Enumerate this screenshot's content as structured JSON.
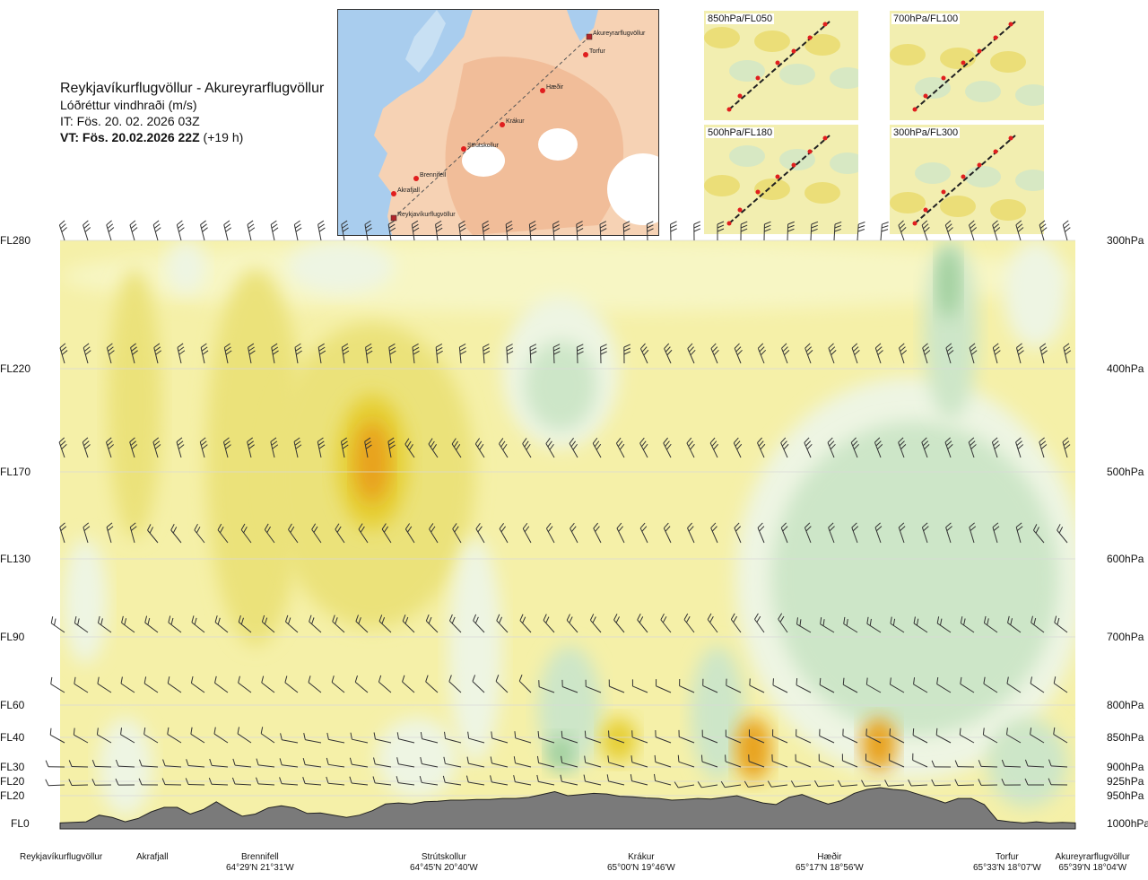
{
  "title": {
    "route": "Reykjavíkurflugvöllur - Akureyrarflugvöllur",
    "variable": "Lóðréttur vindhraði (m/s)",
    "it": "IT: Fös. 20. 02. 2026 03Z",
    "vt_bold": "VT: Fös. 20.02.2026 22Z",
    "vt_offset": "(+19 h)"
  },
  "map": {
    "points": [
      "Akureyrarflugvöllur",
      "Torfur",
      "Hæðir",
      "Krákur",
      "Strútskollur",
      "Brennifell",
      "Akrafjall",
      "Reykjavíkurflugvöllur"
    ]
  },
  "mini_maps": [
    "850hPa/FL050",
    "700hPa/FL100",
    "500hPa/FL180",
    "300hPa/FL300"
  ],
  "colors": {
    "background": "#f5f0a8",
    "up_light": "#f7f6c4",
    "up_mid": "#ebe27a",
    "up_strong": "#e6cf35",
    "up_peak": "#e8a21d",
    "down_light": "#eef5e3",
    "down_mid": "#cde6c8",
    "down_strong": "#9fcf9b",
    "terrain": "#7a7a7a"
  },
  "chart_data": {
    "type": "heatmap",
    "description_axis": "distance along route vs flight level",
    "y_axis_left": [
      "FL280",
      "FL220",
      "FL170",
      "FL130",
      "FL90",
      "FL60",
      "FL40",
      "FL30",
      "FL20",
      "FL20",
      "FL0"
    ],
    "y_axis_right": [
      "300hPa",
      "400hPa",
      "500hPa",
      "600hPa",
      "700hPa",
      "800hPa",
      "850hPa",
      "900hPa",
      "925hPa",
      "950hPa",
      "1000hPa"
    ],
    "pressure_levels_hpa": [
      300,
      400,
      500,
      600,
      700,
      800,
      850,
      900,
      925,
      950,
      1000
    ],
    "x_locations": [
      {
        "name": "Reykjavíkurflugvöllur",
        "coord": ""
      },
      {
        "name": "Akrafjall",
        "coord": ""
      },
      {
        "name": "Brennifell",
        "coord": "64°29'N 21°31'W"
      },
      {
        "name": "Strútskollur",
        "coord": "64°45'N 20°40'W"
      },
      {
        "name": "Krákur",
        "coord": "65°00'N 19°46'W"
      },
      {
        "name": "Hæðir",
        "coord": "65°17'N 18°56'W"
      },
      {
        "name": "Torfur",
        "coord": "65°33'N 18°07'W"
      },
      {
        "name": "Akureyrarflugvöllur",
        "coord": "65°39'N 18°04'W"
      }
    ],
    "terrain_profile_hpa": [
      999,
      998,
      997,
      985,
      989,
      997,
      991,
      979,
      971,
      971,
      983,
      975,
      961,
      975,
      987,
      983,
      972,
      968,
      972,
      982,
      981,
      985,
      989,
      985,
      977,
      965,
      963,
      965,
      961,
      960,
      958,
      958,
      957,
      957,
      955,
      955,
      953,
      948,
      943,
      950,
      948,
      946,
      947,
      951,
      952,
      954,
      955,
      958,
      957,
      955,
      956,
      953,
      950,
      957,
      963,
      966,
      953,
      948,
      957,
      965,
      959,
      946,
      939,
      936,
      939,
      941,
      948,
      955,
      963,
      955,
      955,
      966,
      994,
      997,
      999,
      997,
      999,
      998,
      999
    ]
  }
}
